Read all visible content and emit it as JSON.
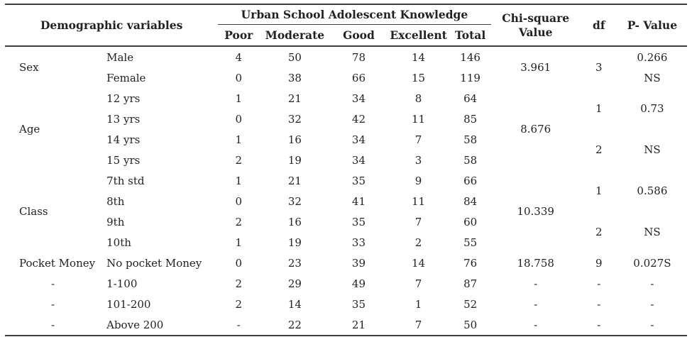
{
  "table": {
    "headers": {
      "demographic": "Demographic variables",
      "knowledge_group": "Urban School Adolescent Knowledge",
      "knowledge_levels": [
        "Poor",
        "Moderate",
        "Good",
        "Excellent",
        "Total"
      ],
      "chi_square": "Chi-square Value",
      "df": "df",
      "p_value": "P- Value"
    },
    "rows": [
      [
        {
          "v": "Sex",
          "rs": 2,
          "al": "l"
        },
        {
          "v": "Male",
          "al": "l"
        },
        {
          "v": "4"
        },
        {
          "v": "50"
        },
        {
          "v": "78"
        },
        {
          "v": "14"
        },
        {
          "v": "146"
        },
        {
          "v": "3.961",
          "rs": 2
        },
        {
          "v": "3",
          "rs": 2
        },
        {
          "v": "0.266"
        }
      ],
      [
        null,
        {
          "v": "Female",
          "al": "l"
        },
        {
          "v": "0"
        },
        {
          "v": "38"
        },
        {
          "v": "66"
        },
        {
          "v": "15"
        },
        {
          "v": "119"
        },
        null,
        null,
        {
          "v": "NS"
        }
      ],
      [
        {
          "v": "Age",
          "rs": 4,
          "al": "l"
        },
        {
          "v": "12 yrs",
          "al": "l"
        },
        {
          "v": "1"
        },
        {
          "v": "21"
        },
        {
          "v": "34"
        },
        {
          "v": "8"
        },
        {
          "v": "64"
        },
        {
          "v": "8.676",
          "rs": 4
        },
        {
          "v": "1",
          "rs": 2
        },
        {
          "v": "0.73",
          "rs": 2
        }
      ],
      [
        null,
        {
          "v": "13 yrs",
          "al": "l"
        },
        {
          "v": "0"
        },
        {
          "v": "32"
        },
        {
          "v": "42"
        },
        {
          "v": "11"
        },
        {
          "v": "85"
        },
        null,
        null,
        null
      ],
      [
        null,
        {
          "v": "14 yrs",
          "al": "l"
        },
        {
          "v": "1"
        },
        {
          "v": "16"
        },
        {
          "v": "34"
        },
        {
          "v": "7"
        },
        {
          "v": "58"
        },
        null,
        {
          "v": "2",
          "rs": 2
        },
        {
          "v": "NS",
          "rs": 2
        }
      ],
      [
        null,
        {
          "v": "15 yrs",
          "al": "l"
        },
        {
          "v": "2"
        },
        {
          "v": "19"
        },
        {
          "v": "34"
        },
        {
          "v": "3"
        },
        {
          "v": "58"
        },
        null,
        null,
        null
      ],
      [
        {
          "v": "Class",
          "rs": 4,
          "al": "l"
        },
        {
          "v": "7th std",
          "al": "l"
        },
        {
          "v": "1"
        },
        {
          "v": "21"
        },
        {
          "v": "35"
        },
        {
          "v": "9"
        },
        {
          "v": "66"
        },
        {
          "v": "10.339",
          "rs": 4
        },
        {
          "v": "1",
          "rs": 2
        },
        {
          "v": "0.586",
          "rs": 2
        }
      ],
      [
        null,
        {
          "v": "8th",
          "al": "l"
        },
        {
          "v": "0"
        },
        {
          "v": "32"
        },
        {
          "v": "41"
        },
        {
          "v": "11"
        },
        {
          "v": "84"
        },
        null,
        null,
        null
      ],
      [
        null,
        {
          "v": "9th",
          "al": "l"
        },
        {
          "v": "2"
        },
        {
          "v": "16"
        },
        {
          "v": "35"
        },
        {
          "v": "7"
        },
        {
          "v": "60"
        },
        null,
        {
          "v": "2",
          "rs": 2
        },
        {
          "v": "NS",
          "rs": 2
        }
      ],
      [
        null,
        {
          "v": "10th",
          "al": "l"
        },
        {
          "v": "1"
        },
        {
          "v": "19"
        },
        {
          "v": "33"
        },
        {
          "v": "2"
        },
        {
          "v": "55"
        },
        null,
        null,
        null
      ],
      [
        {
          "v": "Pocket Money",
          "al": "l"
        },
        {
          "v": "No pocket Money",
          "al": "l"
        },
        {
          "v": "0"
        },
        {
          "v": "23"
        },
        {
          "v": "39"
        },
        {
          "v": "14"
        },
        {
          "v": "76"
        },
        {
          "v": "18.758"
        },
        {
          "v": "9"
        },
        {
          "v": "0.027S"
        }
      ],
      [
        {
          "v": "-"
        },
        {
          "v": "1-100",
          "al": "l"
        },
        {
          "v": "2"
        },
        {
          "v": "29"
        },
        {
          "v": "49"
        },
        {
          "v": "7"
        },
        {
          "v": "87"
        },
        {
          "v": "-"
        },
        {
          "v": "-"
        },
        {
          "v": "-"
        }
      ],
      [
        {
          "v": "-"
        },
        {
          "v": "101-200",
          "al": "l"
        },
        {
          "v": "2"
        },
        {
          "v": "14"
        },
        {
          "v": "35"
        },
        {
          "v": "1"
        },
        {
          "v": "52"
        },
        {
          "v": "-"
        },
        {
          "v": "-"
        },
        {
          "v": "-"
        }
      ],
      [
        {
          "v": "-"
        },
        {
          "v": "Above 200",
          "al": "l"
        },
        {
          "v": "-"
        },
        {
          "v": "22"
        },
        {
          "v": "21"
        },
        {
          "v": "7"
        },
        {
          "v": "50"
        },
        {
          "v": "-"
        },
        {
          "v": "-"
        },
        {
          "v": "-"
        }
      ]
    ]
  }
}
